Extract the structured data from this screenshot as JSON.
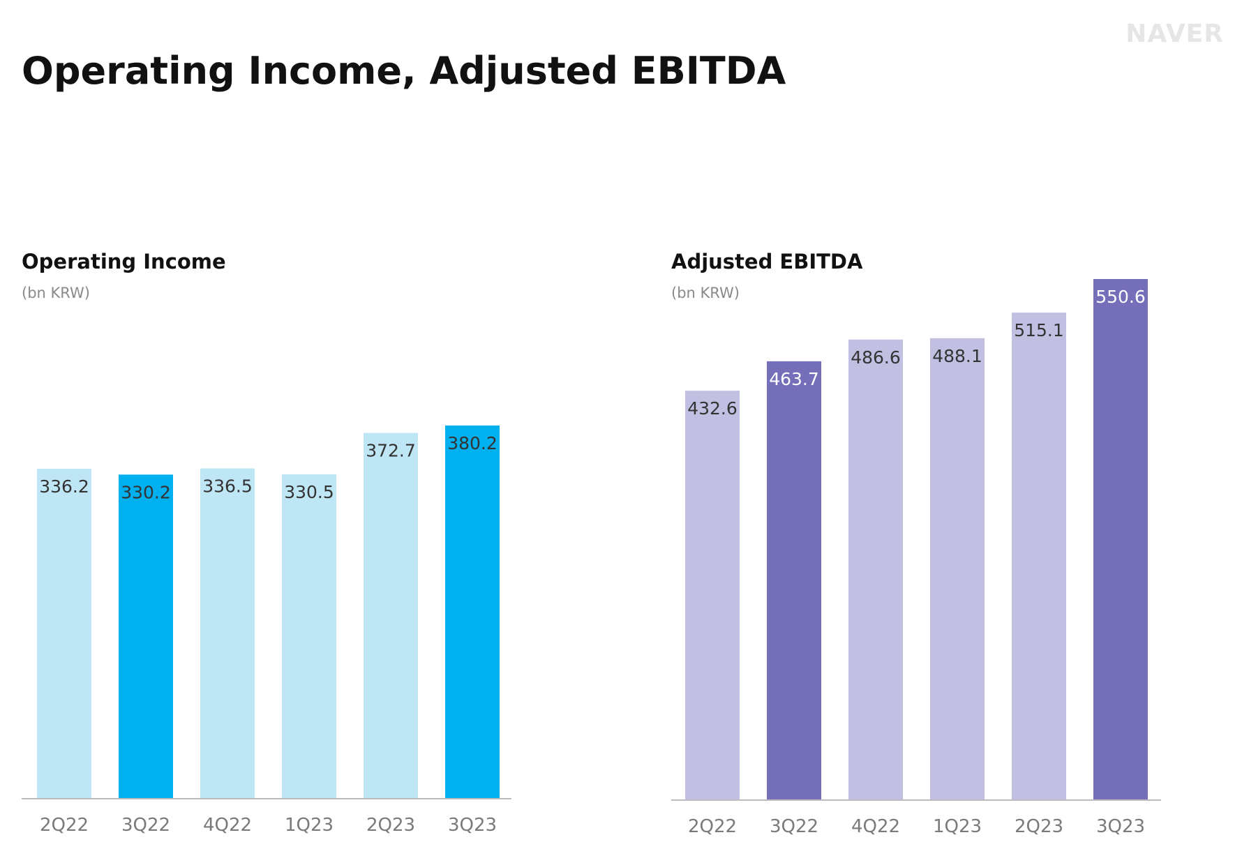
{
  "header": {
    "brand": "NAVER",
    "title": "Operating Income, Adjusted EBITDA"
  },
  "colors": {
    "oi_highlight": "#00B0EF",
    "oi_muted": "#BFE6F4",
    "ebitda_highlight": "#756FBA",
    "ebitda_muted": "#C2C0E2",
    "axis": "#BBBBBB",
    "label_dark": "#333333",
    "label_light": "#FFFFFF"
  },
  "chart_data": [
    {
      "type": "bar",
      "title": "Operating Income",
      "unit": "(bn KRW)",
      "categories": [
        "2Q22",
        "3Q22",
        "4Q22",
        "1Q23",
        "2Q23",
        "3Q23"
      ],
      "values": [
        336.2,
        330.2,
        336.5,
        330.5,
        372.7,
        380.2
      ],
      "value_labels": [
        "336.2",
        "330.2",
        "336.5",
        "330.5",
        "372.7",
        "380.2"
      ],
      "highlighted": [
        false,
        true,
        false,
        false,
        false,
        true
      ],
      "ylim": [
        0,
        380.2
      ]
    },
    {
      "type": "bar",
      "title": "Adjusted EBITDA",
      "unit": "(bn KRW)",
      "categories": [
        "2Q22",
        "3Q22",
        "4Q22",
        "1Q23",
        "2Q23",
        "3Q23"
      ],
      "values": [
        432.6,
        463.7,
        486.6,
        488.1,
        515.1,
        550.6
      ],
      "value_labels": [
        "432.6",
        "463.7",
        "486.6",
        "488.1",
        "515.1",
        "550.6"
      ],
      "highlighted": [
        false,
        true,
        false,
        false,
        false,
        true
      ],
      "ylim": [
        0,
        550.6
      ]
    }
  ]
}
